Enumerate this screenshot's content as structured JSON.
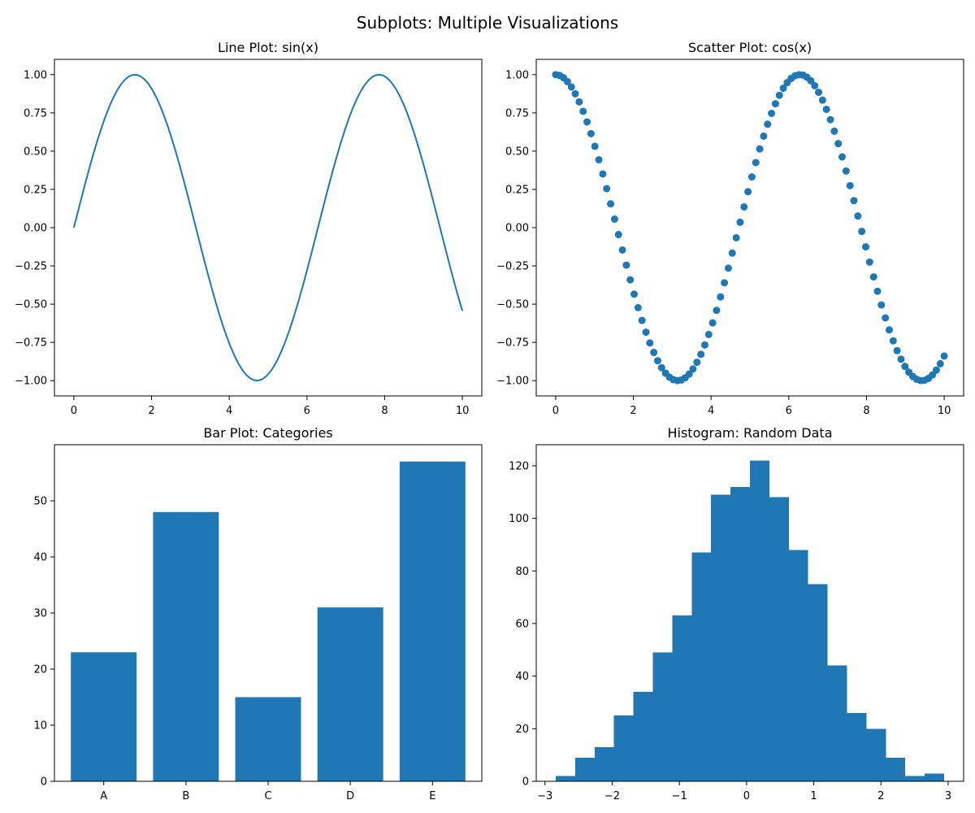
{
  "figure": {
    "title": "Subplots: Multiple Visualizations"
  },
  "chart_data": [
    {
      "type": "line",
      "title": "Line Plot: sin(x)",
      "xlabel": "",
      "ylabel": "",
      "function": "sin(x)",
      "x_range": [
        0,
        10
      ],
      "num_points": 100,
      "xlim": [
        -0.5,
        10.5
      ],
      "ylim": [
        -1.1,
        1.1
      ],
      "xticks": [
        0,
        2,
        4,
        6,
        8,
        10
      ],
      "yticks": [
        -1.0,
        -0.75,
        -0.5,
        -0.25,
        0.0,
        0.25,
        0.5,
        0.75,
        1.0
      ],
      "xtick_labels": [
        "0",
        "2",
        "4",
        "6",
        "8",
        "10"
      ],
      "ytick_labels": [
        "−1.00",
        "−0.75",
        "−0.50",
        "−0.25",
        "0.00",
        "0.25",
        "0.50",
        "0.75",
        "1.00"
      ],
      "grid": false,
      "color": "#1f77b4"
    },
    {
      "type": "scatter",
      "title": "Scatter Plot: cos(x)",
      "xlabel": "",
      "ylabel": "",
      "function": "cos(x)",
      "x_range": [
        0,
        10
      ],
      "num_points": 100,
      "xlim": [
        -0.5,
        10.5
      ],
      "ylim": [
        -1.1,
        1.1
      ],
      "xticks": [
        0,
        2,
        4,
        6,
        8,
        10
      ],
      "yticks": [
        -1.0,
        -0.75,
        -0.5,
        -0.25,
        0.0,
        0.25,
        0.5,
        0.75,
        1.0
      ],
      "xtick_labels": [
        "0",
        "2",
        "4",
        "6",
        "8",
        "10"
      ],
      "ytick_labels": [
        "−1.00",
        "−0.75",
        "−0.50",
        "−0.25",
        "0.00",
        "0.25",
        "0.50",
        "0.75",
        "1.00"
      ],
      "grid": false,
      "color": "#1f77b4"
    },
    {
      "type": "bar",
      "title": "Bar Plot: Categories",
      "xlabel": "",
      "ylabel": "",
      "categories": [
        "A",
        "B",
        "C",
        "D",
        "E"
      ],
      "values": [
        23,
        48,
        15,
        31,
        57
      ],
      "ylim": [
        0,
        60
      ],
      "yticks": [
        0,
        10,
        20,
        30,
        40,
        50
      ],
      "ytick_labels": [
        "0",
        "10",
        "20",
        "30",
        "40",
        "50"
      ],
      "grid": false,
      "color": "#1f77b4"
    },
    {
      "type": "bar",
      "title": "Histogram: Random Data",
      "xlabel": "",
      "ylabel": "",
      "bin_edges": [
        -2.84,
        -2.551,
        -2.262,
        -1.973,
        -1.684,
        -1.395,
        -1.106,
        -0.817,
        -0.528,
        -0.239,
        0.05,
        0.339,
        0.628,
        0.917,
        1.206,
        1.495,
        1.784,
        2.073,
        2.362,
        2.651,
        2.94
      ],
      "counts": [
        2,
        9,
        13,
        25,
        34,
        49,
        63,
        87,
        109,
        112,
        122,
        108,
        88,
        75,
        44,
        26,
        20,
        9,
        2,
        3
      ],
      "xlim": [
        -3.13,
        3.23
      ],
      "ylim": [
        0,
        128
      ],
      "xticks": [
        -3,
        -2,
        -1,
        0,
        1,
        2,
        3
      ],
      "xtick_labels": [
        "−3",
        "−2",
        "−1",
        "0",
        "1",
        "2",
        "3"
      ],
      "yticks": [
        0,
        20,
        40,
        60,
        80,
        100,
        120
      ],
      "ytick_labels": [
        "0",
        "20",
        "40",
        "60",
        "80",
        "100",
        "120"
      ],
      "grid": false,
      "color": "#1f77b4"
    }
  ]
}
